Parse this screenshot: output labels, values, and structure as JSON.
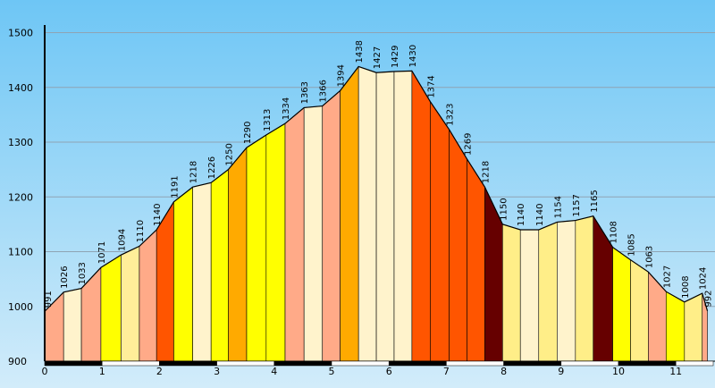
{
  "chart_data": {
    "type": "area",
    "title": "",
    "xlabel": "",
    "ylabel": "",
    "unit": "m",
    "xlim": [
      0,
      11.55
    ],
    "ylim": [
      900,
      1520
    ],
    "grid": true,
    "y_ticks": [
      "900",
      "1000",
      "1100",
      "1200",
      "1300",
      "1400",
      "1500"
    ],
    "x_ticks": [
      "0",
      "1",
      "2",
      "3",
      "4",
      "5",
      "6",
      "7",
      "8",
      "9",
      "10",
      "11"
    ],
    "points": [
      {
        "x": 0.0,
        "y": 991,
        "label": "991"
      },
      {
        "x": 0.33,
        "y": 1026,
        "label": "1026"
      },
      {
        "x": 0.64,
        "y": 1033,
        "label": "1033"
      },
      {
        "x": 0.98,
        "y": 1071,
        "label": "1071"
      },
      {
        "x": 1.33,
        "y": 1094,
        "label": "1094"
      },
      {
        "x": 1.65,
        "y": 1110,
        "label": "1110"
      },
      {
        "x": 1.95,
        "y": 1140,
        "label": "1140"
      },
      {
        "x": 2.25,
        "y": 1191,
        "label": "1191"
      },
      {
        "x": 2.58,
        "y": 1218,
        "label": "1218"
      },
      {
        "x": 2.9,
        "y": 1226,
        "label": "1226"
      },
      {
        "x": 3.2,
        "y": 1250,
        "label": "1250"
      },
      {
        "x": 3.52,
        "y": 1290,
        "label": "1290"
      },
      {
        "x": 3.86,
        "y": 1313,
        "label": "1313"
      },
      {
        "x": 4.19,
        "y": 1334,
        "label": "1334"
      },
      {
        "x": 4.52,
        "y": 1363,
        "label": "1363"
      },
      {
        "x": 4.84,
        "y": 1366,
        "label": "1366"
      },
      {
        "x": 5.15,
        "y": 1394,
        "label": "1394"
      },
      {
        "x": 5.47,
        "y": 1438,
        "label": "1438"
      },
      {
        "x": 5.78,
        "y": 1427,
        "label": "1427"
      },
      {
        "x": 6.09,
        "y": 1429,
        "label": "1429"
      },
      {
        "x": 6.4,
        "y": 1430,
        "label": "1430"
      },
      {
        "x": 6.72,
        "y": 1374,
        "label": "1374"
      },
      {
        "x": 7.05,
        "y": 1323,
        "label": "1323"
      },
      {
        "x": 7.36,
        "y": 1269,
        "label": "1269"
      },
      {
        "x": 7.67,
        "y": 1218,
        "label": "1218"
      },
      {
        "x": 7.98,
        "y": 1150,
        "label": "1150"
      },
      {
        "x": 8.29,
        "y": 1140,
        "label": "1140"
      },
      {
        "x": 8.61,
        "y": 1140,
        "label": "1140"
      },
      {
        "x": 8.93,
        "y": 1154,
        "label": "1154"
      },
      {
        "x": 9.25,
        "y": 1157,
        "label": "1157"
      },
      {
        "x": 9.56,
        "y": 1165,
        "label": "1165"
      },
      {
        "x": 9.9,
        "y": 1108,
        "label": "1108"
      },
      {
        "x": 10.21,
        "y": 1085,
        "label": "1085"
      },
      {
        "x": 10.52,
        "y": 1063,
        "label": "1063"
      },
      {
        "x": 10.83,
        "y": 1027,
        "label": "1027"
      },
      {
        "x": 11.15,
        "y": 1008,
        "label": "1008"
      },
      {
        "x": 11.46,
        "y": 1024,
        "label": "1024"
      },
      {
        "x": 11.55,
        "y": 992,
        "label": "992"
      }
    ],
    "segment_colors": [
      "#FFAA88",
      "#FFF3CC",
      "#FFAA88",
      "#FFFF00",
      "#FFEE99",
      "#FFAA88",
      "#FF5500",
      "#FFFF00",
      "#FFF3CC",
      "#FFFF00",
      "#FFAA00",
      "#FFFF00",
      "#FFFF00",
      "#FFAA88",
      "#FFF3CC",
      "#FFAA88",
      "#FFAA00",
      "#FFF3CC",
      "#FFF3CC",
      "#FFF3CC",
      "#FF5500",
      "#FF5500",
      "#FF5500",
      "#FF5500",
      "#660000",
      "#FFEE88",
      "#FFF3CC",
      "#FFEE88",
      "#FFF3CC",
      "#FFEE88",
      "#660000",
      "#FFFF00",
      "#FFEE88",
      "#FFAA88",
      "#FFFF00",
      "#FFEE88",
      "#FFAA88"
    ],
    "colors": {
      "sky_top": "#6EC6F5",
      "sky_bottom": "#D2ECFA",
      "grid": "#8FA4B4",
      "axis": "#000000"
    }
  }
}
